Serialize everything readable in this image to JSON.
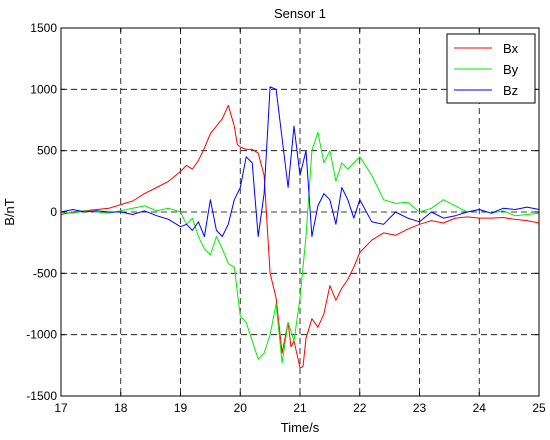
{
  "chart_data": {
    "type": "line",
    "title": "Sensor 1",
    "xlabel": "Time/s",
    "ylabel": "B/nT",
    "xlim": [
      17,
      25
    ],
    "ylim": [
      -1500,
      1500
    ],
    "xticks": [
      17,
      18,
      19,
      20,
      21,
      22,
      23,
      24,
      25
    ],
    "yticks": [
      -1500,
      -1000,
      -500,
      0,
      500,
      1000,
      1500
    ],
    "grid": true,
    "legend_position": "top-right",
    "series": [
      {
        "name": "Bx",
        "color": "#ff0000",
        "x": [
          17.0,
          17.2,
          17.4,
          17.6,
          17.8,
          18.0,
          18.2,
          18.4,
          18.6,
          18.8,
          19.0,
          19.1,
          19.2,
          19.3,
          19.4,
          19.5,
          19.6,
          19.7,
          19.8,
          19.9,
          19.95,
          20.0,
          20.1,
          20.2,
          20.3,
          20.4,
          20.5,
          20.6,
          20.7,
          20.8,
          20.85,
          20.9,
          21.0,
          21.05,
          21.1,
          21.2,
          21.3,
          21.4,
          21.5,
          21.6,
          21.7,
          21.8,
          21.9,
          22.0,
          22.2,
          22.4,
          22.6,
          22.8,
          23.0,
          23.2,
          23.4,
          23.6,
          23.8,
          24.0,
          24.2,
          24.4,
          24.6,
          24.8,
          25.0
        ],
        "y": [
          -20,
          0,
          10,
          20,
          30,
          60,
          90,
          150,
          200,
          250,
          330,
          380,
          350,
          420,
          520,
          640,
          700,
          760,
          870,
          700,
          550,
          530,
          510,
          510,
          480,
          300,
          -500,
          -700,
          -1150,
          -900,
          -1100,
          -1050,
          -1270,
          -1260,
          -1030,
          -870,
          -940,
          -830,
          -600,
          -720,
          -620,
          -550,
          -450,
          -330,
          -230,
          -170,
          -190,
          -140,
          -100,
          -70,
          -90,
          -50,
          -40,
          -50,
          -50,
          -45,
          -60,
          -70,
          -90
        ]
      },
      {
        "name": "By",
        "color": "#00ee00",
        "x": [
          17.0,
          17.2,
          17.4,
          17.6,
          17.8,
          18.0,
          18.2,
          18.4,
          18.6,
          18.8,
          19.0,
          19.1,
          19.2,
          19.3,
          19.4,
          19.5,
          19.6,
          19.7,
          19.8,
          19.9,
          20.0,
          20.1,
          20.2,
          20.3,
          20.4,
          20.5,
          20.6,
          20.7,
          20.8,
          20.9,
          21.0,
          21.1,
          21.2,
          21.3,
          21.4,
          21.5,
          21.6,
          21.7,
          21.8,
          21.9,
          22.0,
          22.2,
          22.4,
          22.6,
          22.8,
          23.0,
          23.2,
          23.4,
          23.6,
          23.8,
          24.0,
          24.2,
          24.4,
          24.6,
          24.8,
          25.0
        ],
        "y": [
          0,
          -10,
          10,
          0,
          -10,
          10,
          30,
          50,
          10,
          30,
          0,
          -100,
          -50,
          -200,
          -300,
          -350,
          -200,
          -300,
          -420,
          -450,
          -850,
          -900,
          -1050,
          -1200,
          -1150,
          -1000,
          -750,
          -1230,
          -900,
          -1050,
          -700,
          -200,
          500,
          650,
          400,
          500,
          250,
          400,
          350,
          400,
          450,
          300,
          100,
          70,
          80,
          0,
          30,
          100,
          50,
          0,
          20,
          -10,
          10,
          -30,
          -20,
          -10
        ]
      },
      {
        "name": "Bz",
        "color": "#0000ff",
        "x": [
          17.0,
          17.2,
          17.4,
          17.6,
          17.8,
          18.0,
          18.2,
          18.4,
          18.6,
          18.8,
          19.0,
          19.1,
          19.2,
          19.3,
          19.4,
          19.5,
          19.6,
          19.7,
          19.8,
          19.9,
          20.0,
          20.1,
          20.2,
          20.3,
          20.4,
          20.5,
          20.6,
          20.7,
          20.8,
          20.9,
          21.0,
          21.1,
          21.2,
          21.3,
          21.4,
          21.5,
          21.6,
          21.7,
          21.8,
          21.9,
          22.0,
          22.2,
          22.4,
          22.6,
          22.8,
          23.0,
          23.2,
          23.4,
          23.6,
          23.8,
          24.0,
          24.2,
          24.4,
          24.6,
          24.8,
          25.0
        ],
        "y": [
          0,
          20,
          0,
          10,
          0,
          0,
          -20,
          10,
          -30,
          -60,
          -120,
          -100,
          -150,
          -80,
          -200,
          100,
          -150,
          -200,
          -100,
          100,
          200,
          450,
          400,
          -200,
          150,
          1020,
          1000,
          600,
          200,
          700,
          300,
          500,
          -200,
          50,
          150,
          100,
          -100,
          200,
          100,
          -50,
          100,
          -80,
          -100,
          0,
          -50,
          -80,
          0,
          -50,
          -30,
          0,
          20,
          -10,
          30,
          20,
          40,
          20
        ]
      }
    ]
  }
}
